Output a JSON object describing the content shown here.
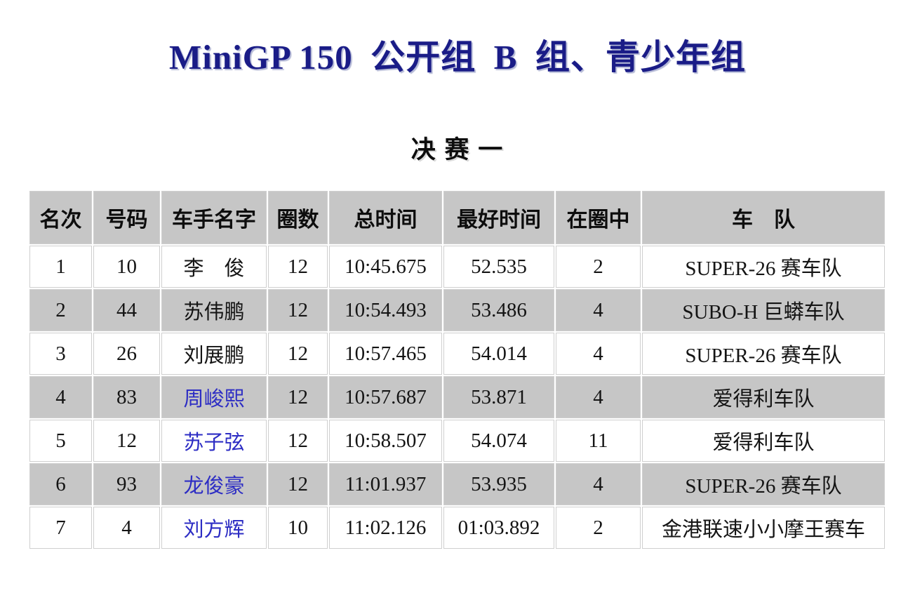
{
  "header": {
    "title": "MiniGP 150 公开组 B 组、青少年组",
    "subtitle": "决 赛 一"
  },
  "table": {
    "columns": [
      {
        "key": "rank",
        "label": "名次"
      },
      {
        "key": "number",
        "label": "号码"
      },
      {
        "key": "name",
        "label": "车手名字"
      },
      {
        "key": "laps",
        "label": "圈数"
      },
      {
        "key": "total_time",
        "label": "总时间"
      },
      {
        "key": "best_time",
        "label": "最好时间"
      },
      {
        "key": "on_lap",
        "label": "在圈中"
      },
      {
        "key": "team",
        "label": "车　队"
      }
    ],
    "rows": [
      {
        "rank": "1",
        "number": "10",
        "name": "李　俊",
        "laps": "12",
        "total_time": "10:45.675",
        "best_time": "52.535",
        "on_lap": "2",
        "team": "SUPER-26 赛车队",
        "name_blue": false
      },
      {
        "rank": "2",
        "number": "44",
        "name": "苏伟鹏",
        "laps": "12",
        "total_time": "10:54.493",
        "best_time": "53.486",
        "on_lap": "4",
        "team": "SUBO-H 巨蟒车队",
        "name_blue": false
      },
      {
        "rank": "3",
        "number": "26",
        "name": "刘展鹏",
        "laps": "12",
        "total_time": "10:57.465",
        "best_time": "54.014",
        "on_lap": "4",
        "team": "SUPER-26 赛车队",
        "name_blue": false
      },
      {
        "rank": "4",
        "number": "83",
        "name": "周峻熙",
        "laps": "12",
        "total_time": "10:57.687",
        "best_time": "53.871",
        "on_lap": "4",
        "team": "爱得利车队",
        "name_blue": true
      },
      {
        "rank": "5",
        "number": "12",
        "name": "苏子弦",
        "laps": "12",
        "total_time": "10:58.507",
        "best_time": "54.074",
        "on_lap": "11",
        "team": "爱得利车队",
        "name_blue": true
      },
      {
        "rank": "6",
        "number": "93",
        "name": "龙俊豪",
        "laps": "12",
        "total_time": "11:01.937",
        "best_time": "53.935",
        "on_lap": "4",
        "team": "SUPER-26 赛车队",
        "name_blue": true
      },
      {
        "rank": "7",
        "number": "4",
        "name": "刘方辉",
        "laps": "10",
        "total_time": "11:02.126",
        "best_time": "01:03.892",
        "on_lap": "2",
        "team": "金港联速小小摩王赛车",
        "name_blue": true
      }
    ]
  },
  "colors": {
    "title_navy": "#1a1c87",
    "row_gray": "#c6c6c6",
    "link_blue": "#2d2dc4"
  }
}
